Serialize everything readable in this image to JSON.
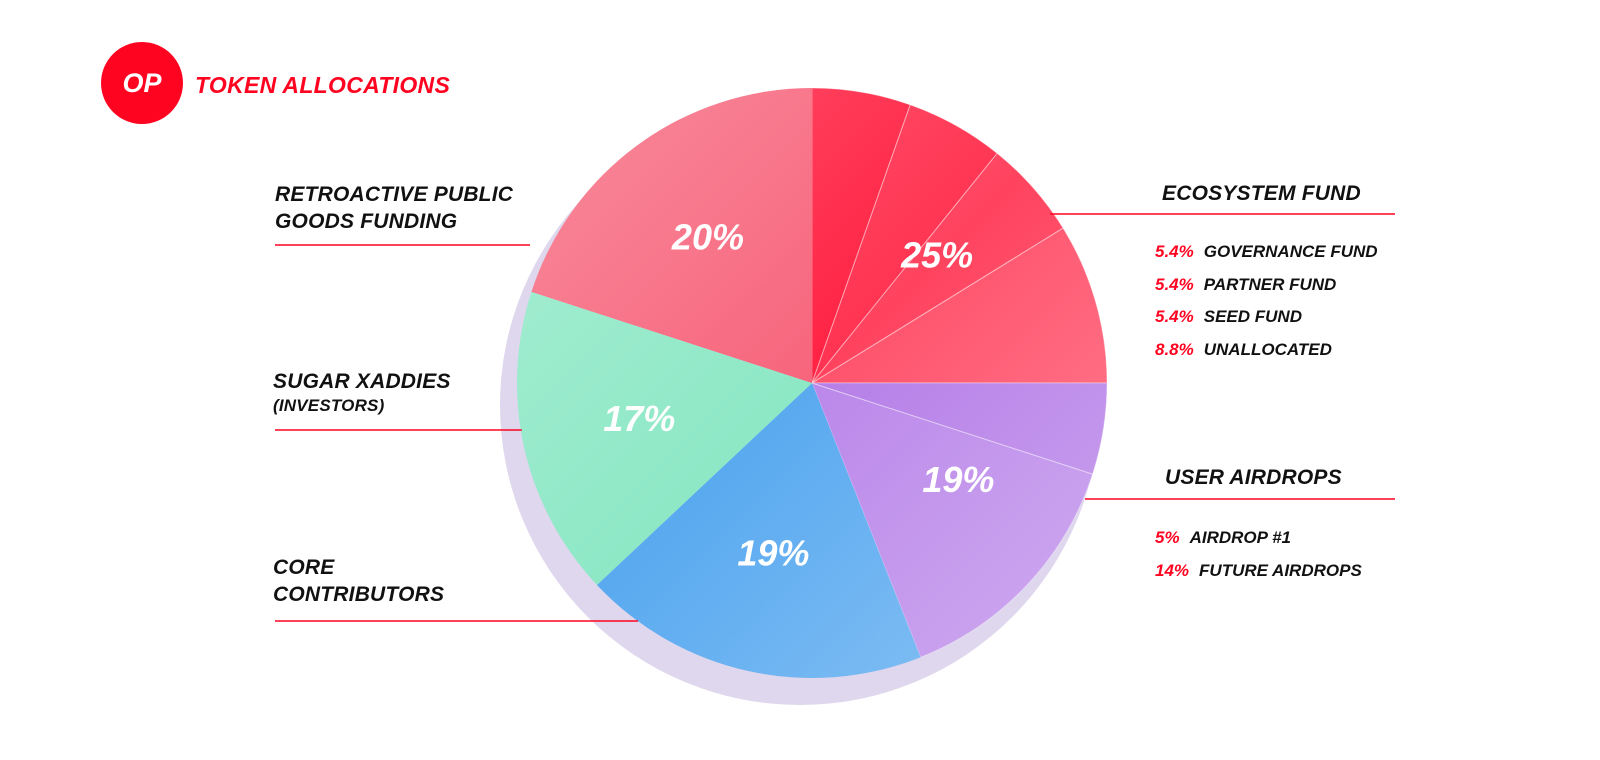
{
  "chart_data": {
    "type": "pie",
    "logo": "OP",
    "title": "TOKEN ALLOCATIONS",
    "slices": [
      {
        "name": "ECOSYSTEM FUND",
        "value": 25,
        "value_label": "25%",
        "color": "#ff1a3c",
        "parts": [
          {
            "name": "GOVERNANCE FUND",
            "value": 5.4,
            "value_label": "5.4%"
          },
          {
            "name": "PARTNER FUND",
            "value": 5.4,
            "value_label": "5.4%"
          },
          {
            "name": "SEED FUND",
            "value": 5.4,
            "value_label": "5.4%"
          },
          {
            "name": "UNALLOCATED",
            "value": 8.8,
            "value_label": "8.8%"
          }
        ]
      },
      {
        "name": "USER AIRDROPS",
        "value": 19,
        "value_label": "19%",
        "color": "#b37ae8",
        "parts": [
          {
            "name": "AIRDROP #1",
            "value": 5,
            "value_label": "5%"
          },
          {
            "name": "FUTURE AIRDROPS",
            "value": 14,
            "value_label": "14%"
          }
        ]
      },
      {
        "name": "CORE CONTRIBUTORS",
        "value": 19,
        "value_label": "19%",
        "color": "#5aaaf0"
      },
      {
        "name": "SUGAR XADDIES",
        "note": "(INVESTORS)",
        "value": 17,
        "value_label": "17%",
        "color": "#8de8c6"
      },
      {
        "name": "RETROACTIVE PUBLIC GOODS FUNDING",
        "value": 20,
        "value_label": "20%",
        "color": "#f7657c"
      }
    ]
  }
}
